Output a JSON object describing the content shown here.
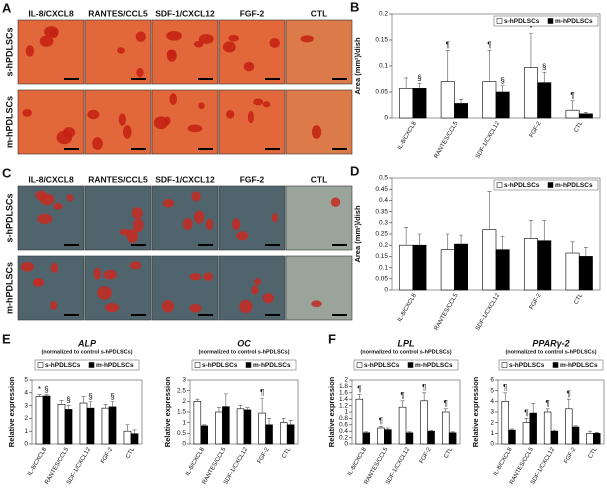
{
  "figure": {
    "panel_a": {
      "label": "A",
      "columns": [
        "IL-8/CXCL8",
        "RANTES/CCL5",
        "SDF-1/CXCL12",
        "FGF-2",
        "CTL"
      ],
      "rows": [
        "s-hPDLSCs",
        "m-hPDLSCs"
      ]
    },
    "panel_c": {
      "label": "C",
      "columns": [
        "IL-8/CXCL8",
        "RANTES/CCL5",
        "SDF-1/CXCL12",
        "FGF-2",
        "CTL"
      ],
      "rows": [
        "s-hPDLSCs",
        "m-hPDLSCs"
      ]
    },
    "panel_e": {
      "label": "E"
    },
    "panel_f": {
      "label": "F"
    }
  },
  "chart_data": [
    {
      "type": "bar",
      "label": "B",
      "ylabel": "Area (mm²)/dish",
      "legend": "upper right",
      "categories": [
        "IL-8/CXCL8",
        "RANTES/CCL5",
        "SDF-1/CXCL12",
        "FGF-2",
        "CTL"
      ],
      "series": [
        {
          "name": "s-hPDLSCs",
          "color": "#ffffff",
          "values": [
            0.057,
            0.07,
            0.07,
            0.097,
            0.015
          ],
          "errors": [
            0.02,
            0.06,
            0.06,
            0.065,
            0.018
          ],
          "annotations": [
            null,
            "¶",
            "¶",
            "*",
            "¶"
          ]
        },
        {
          "name": "m-hPDLSCs",
          "color": "#000000",
          "values": [
            0.057,
            0.028,
            0.05,
            0.068,
            0.008
          ],
          "errors": [
            0.01,
            0.008,
            0.012,
            0.02,
            0.003
          ],
          "annotations": [
            "§",
            null,
            "§",
            "§",
            null
          ]
        }
      ],
      "ylim": [
        0,
        0.2
      ],
      "yticks": [
        0,
        0.05,
        0.1,
        0.15,
        0.2
      ]
    },
    {
      "type": "bar",
      "label": "D",
      "ylabel": "Area (mm²)/dish",
      "legend": "upper right",
      "categories": [
        "IL-8/CXCL8",
        "RANTES/CCL5",
        "SDF-1/CXCL12",
        "FGF-2",
        "CTL"
      ],
      "series": [
        {
          "name": "s-hPDLSCs",
          "color": "#ffffff",
          "values": [
            0.2,
            0.18,
            0.27,
            0.23,
            0.165
          ],
          "errors": [
            0.08,
            0.07,
            0.17,
            0.08,
            0.05
          ],
          "annotations": [
            null,
            null,
            null,
            null,
            null
          ]
        },
        {
          "name": "m-hPDLSCs",
          "color": "#000000",
          "values": [
            0.2,
            0.205,
            0.18,
            0.22,
            0.15
          ],
          "errors": [
            0.05,
            0.04,
            0.06,
            0.09,
            0.04
          ],
          "annotations": [
            null,
            null,
            null,
            null,
            null
          ]
        }
      ],
      "ylim": [
        0,
        0.5
      ],
      "yticks": [
        0,
        0.05,
        0.1,
        0.15,
        0.2,
        0.25,
        0.3,
        0.35,
        0.4,
        0.45,
        0.5
      ]
    },
    {
      "type": "bar",
      "title": "ALP",
      "subtitle": "(normalized to control s-hPDLSCs)",
      "ylabel": "Relative expression",
      "legend": "top",
      "categories": [
        "IL-8/CXCL8",
        "RANTES/CCL5",
        "SDF-1/CXCL12",
        "FGF-2",
        "CTL"
      ],
      "series": [
        {
          "name": "s-hPDLSCs",
          "color": "#ffffff",
          "values": [
            3.7,
            3.1,
            3.2,
            2.8,
            1.0
          ],
          "errors": [
            0.15,
            0.3,
            0.5,
            0.3,
            0.5
          ],
          "annotations": [
            "*",
            null,
            null,
            null,
            null
          ]
        },
        {
          "name": "m-hPDLSCs",
          "color": "#000000",
          "values": [
            3.75,
            2.7,
            2.8,
            2.9,
            0.8
          ],
          "errors": [
            0.1,
            0.3,
            0.5,
            0.4,
            0.3
          ],
          "annotations": [
            "§",
            "§",
            "§",
            "§",
            null
          ]
        }
      ],
      "ylim": [
        0,
        5
      ],
      "yticks": [
        0,
        1,
        2,
        3,
        4,
        5
      ]
    },
    {
      "type": "bar",
      "title": "OC",
      "subtitle": "(normalized to control s-hPDLSCs)",
      "ylabel": "Relative expression",
      "legend": "top",
      "categories": [
        "IL-8/CXCL8",
        "RANTES/CCL5",
        "SDF-1/CXCL12",
        "FGF-2",
        "CTL"
      ],
      "series": [
        {
          "name": "s-hPDLSCs",
          "color": "#ffffff",
          "values": [
            2.0,
            1.5,
            1.65,
            1.45,
            1.0
          ],
          "errors": [
            0.1,
            0.2,
            0.15,
            0.7,
            0.2
          ],
          "annotations": [
            null,
            null,
            null,
            "¶",
            null
          ]
        },
        {
          "name": "m-hPDLSCs",
          "color": "#000000",
          "values": [
            0.85,
            1.75,
            1.6,
            0.9,
            0.9
          ],
          "errors": [
            0.05,
            0.6,
            0.1,
            0.3,
            0.2
          ],
          "annotations": [
            null,
            null,
            null,
            null,
            null
          ]
        }
      ],
      "ylim": [
        0,
        3
      ],
      "yticks": [
        0,
        0.5,
        1,
        1.5,
        2,
        2.5,
        3
      ]
    },
    {
      "type": "bar",
      "title": "LPL",
      "subtitle": "(normalized to control s-hPDLSCs)",
      "ylabel": "Relative expression",
      "legend": "top",
      "categories": [
        "IL-8/CXCL8",
        "RANTES/CCL5",
        "SDF-1/CXCL12",
        "FGF-2",
        "CTL"
      ],
      "series": [
        {
          "name": "s-hPDLSCs",
          "color": "#ffffff",
          "values": [
            1.4,
            0.5,
            1.15,
            1.35,
            1.0
          ],
          "errors": [
            0.15,
            0.05,
            0.2,
            0.25,
            0.1
          ],
          "annotations": [
            "¶",
            "¶",
            "¶",
            "¶",
            "¶"
          ]
        },
        {
          "name": "m-hPDLSCs",
          "color": "#000000",
          "values": [
            0.35,
            0.45,
            0.35,
            0.4,
            0.35
          ],
          "errors": [
            0.03,
            0.05,
            0.03,
            0.03,
            0.03
          ],
          "annotations": [
            null,
            null,
            null,
            null,
            null
          ]
        }
      ],
      "ylim": [
        0,
        2
      ],
      "yticks": [
        0,
        0.2,
        0.4,
        0.6,
        0.8,
        1,
        1.2,
        1.4,
        1.6,
        1.8,
        2
      ]
    },
    {
      "type": "bar",
      "title": "PPARγ-2",
      "subtitle": "(normalized to control s-hPDLSCs)",
      "ylabel": "Relative expression",
      "legend": "top",
      "categories": [
        "IL-8/CXCL8",
        "RANTES/CCL5",
        "SDF-1/CXCL12",
        "FGF-2",
        "CTL"
      ],
      "series": [
        {
          "name": "s-hPDLSCs",
          "color": "#ffffff",
          "values": [
            4.0,
            2.0,
            3.0,
            3.3,
            1.0
          ],
          "errors": [
            0.8,
            0.4,
            0.3,
            0.9,
            0.2
          ],
          "annotations": [
            "¶",
            "¶",
            "¶",
            "¶",
            null
          ]
        },
        {
          "name": "m-hPDLSCs",
          "color": "#000000",
          "values": [
            1.3,
            2.9,
            1.2,
            1.6,
            1.0
          ],
          "errors": [
            0.1,
            0.9,
            0.1,
            0.1,
            0.1
          ],
          "annotations": [
            null,
            null,
            null,
            null,
            null
          ]
        }
      ],
      "ylim": [
        0,
        6
      ],
      "yticks": [
        0,
        1,
        2,
        3,
        4,
        5,
        6
      ]
    }
  ]
}
